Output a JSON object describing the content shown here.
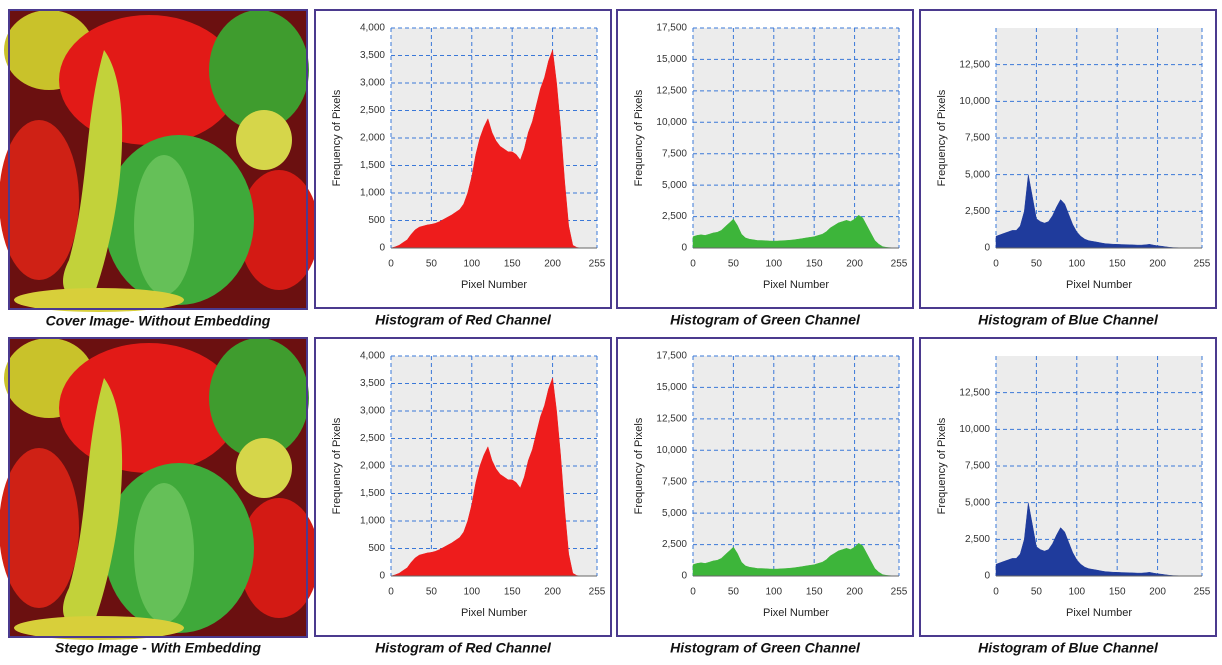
{
  "images": [
    {
      "caption": "Cover Image- Without Embedding"
    },
    {
      "caption": "Stego Image - With Embedding"
    }
  ],
  "chart_data": [
    {
      "type": "area",
      "title": "Histogram of Red Channel",
      "x_label": "Pixel Number",
      "y_label": "Frequency of Pixels",
      "color": "#ee1c1c",
      "grid": true,
      "xlim": [
        0,
        255
      ],
      "xticks": [
        0,
        50,
        100,
        150,
        200,
        255
      ],
      "ylim": [
        0,
        4000
      ],
      "yticks": [
        0,
        500,
        {
          "value": 1000,
          "label": "1,000"
        },
        {
          "value": 1500,
          "label": "1,500"
        },
        {
          "value": 2000,
          "label": "2,000"
        },
        {
          "value": 2500,
          "label": "2,500"
        },
        {
          "value": 3000,
          "label": "3,000"
        },
        {
          "value": 3500,
          "label": "3,500"
        },
        {
          "value": 4000,
          "label": "4,000"
        }
      ],
      "x": [
        0,
        5,
        10,
        15,
        20,
        25,
        30,
        35,
        40,
        45,
        50,
        55,
        60,
        65,
        70,
        75,
        80,
        85,
        90,
        95,
        100,
        105,
        110,
        115,
        120,
        125,
        130,
        135,
        140,
        145,
        150,
        155,
        160,
        165,
        170,
        175,
        180,
        185,
        190,
        195,
        200,
        205,
        210,
        215,
        220,
        225,
        230,
        235,
        240,
        245,
        250,
        255
      ],
      "values": [
        0,
        20,
        50,
        100,
        150,
        250,
        330,
        380,
        400,
        420,
        430,
        450,
        480,
        520,
        560,
        600,
        650,
        700,
        800,
        1000,
        1300,
        1700,
        2000,
        2200,
        2350,
        2100,
        1950,
        1850,
        1800,
        1750,
        1750,
        1700,
        1600,
        1800,
        2100,
        2300,
        2600,
        2900,
        3100,
        3400,
        3600,
        3000,
        2200,
        1200,
        400,
        50,
        10,
        0,
        0,
        0,
        0,
        0
      ]
    },
    {
      "type": "area",
      "title": "Histogram of Green Channel",
      "x_label": "Pixel Number",
      "y_label": "Frequency of Pixels",
      "color": "#3db53a",
      "grid": true,
      "xlim": [
        0,
        255
      ],
      "xticks": [
        0,
        50,
        100,
        150,
        200,
        255
      ],
      "ylim": [
        0,
        17500
      ],
      "yticks": [
        0,
        {
          "value": 2500,
          "label": "2,500"
        },
        {
          "value": 5000,
          "label": "5,000"
        },
        {
          "value": 7500,
          "label": "7,500"
        },
        {
          "value": 10000,
          "label": "10,000"
        },
        {
          "value": 12500,
          "label": "12,500"
        },
        {
          "value": 15000,
          "label": "15,000"
        },
        {
          "value": 17500,
          "label": "17,500"
        }
      ],
      "x": [
        0,
        5,
        10,
        15,
        20,
        25,
        30,
        35,
        40,
        45,
        50,
        55,
        60,
        65,
        70,
        75,
        80,
        85,
        90,
        95,
        100,
        105,
        110,
        115,
        120,
        125,
        130,
        135,
        140,
        145,
        150,
        155,
        160,
        165,
        170,
        175,
        180,
        185,
        190,
        195,
        200,
        205,
        210,
        215,
        220,
        225,
        230,
        235,
        240,
        245,
        250,
        255
      ],
      "values": [
        900,
        1000,
        1050,
        1000,
        1100,
        1200,
        1250,
        1400,
        1700,
        2000,
        2300,
        1800,
        1100,
        800,
        700,
        650,
        600,
        600,
        580,
        560,
        550,
        560,
        580,
        600,
        620,
        650,
        700,
        750,
        800,
        850,
        900,
        1000,
        1100,
        1300,
        1600,
        1800,
        2000,
        2100,
        2200,
        2100,
        2300,
        2600,
        2400,
        1800,
        1200,
        600,
        300,
        100,
        50,
        20,
        0,
        0
      ]
    },
    {
      "type": "area",
      "title": "Histogram of Blue Channel",
      "x_label": "Pixel Number",
      "y_label": "Frequency of Pixels",
      "color": "#1f3b9c",
      "grid": true,
      "xlim": [
        0,
        255
      ],
      "xticks": [
        0,
        50,
        100,
        150,
        200,
        255
      ],
      "ylim": [
        0,
        15000
      ],
      "yticks": [
        0,
        {
          "value": 2500,
          "label": "2,500"
        },
        {
          "value": 5000,
          "label": "5,000"
        },
        {
          "value": 7500,
          "label": "7,500"
        },
        {
          "value": 10000,
          "label": "10,000"
        },
        {
          "value": 12500,
          "label": "12,500"
        }
      ],
      "x": [
        0,
        5,
        10,
        15,
        20,
        25,
        30,
        35,
        40,
        45,
        50,
        55,
        60,
        65,
        70,
        75,
        80,
        85,
        90,
        95,
        100,
        105,
        110,
        115,
        120,
        125,
        130,
        135,
        140,
        145,
        150,
        155,
        160,
        165,
        170,
        175,
        180,
        185,
        190,
        195,
        200,
        205,
        210,
        215,
        220,
        225,
        230,
        235,
        240,
        245,
        250,
        255
      ],
      "values": [
        800,
        900,
        1000,
        1100,
        1200,
        1200,
        1500,
        2500,
        5000,
        3500,
        2000,
        1800,
        1700,
        1800,
        2200,
        2800,
        3300,
        3000,
        2300,
        1600,
        1100,
        800,
        600,
        500,
        450,
        400,
        350,
        300,
        280,
        260,
        250,
        240,
        230,
        220,
        210,
        200,
        200,
        220,
        250,
        200,
        150,
        120,
        80,
        50,
        30,
        20,
        10,
        0,
        0,
        0,
        0,
        0
      ]
    },
    {
      "type": "area",
      "title": "Histogram of Red Channel",
      "x_label": "Pixel Number",
      "y_label": "Frequency of Pixels",
      "color": "#ee1c1c",
      "grid": true,
      "xlim": [
        0,
        255
      ],
      "xticks": [
        0,
        50,
        100,
        150,
        200,
        255
      ],
      "ylim": [
        0,
        4000
      ],
      "yticks": [
        0,
        500,
        {
          "value": 1000,
          "label": "1,000"
        },
        {
          "value": 1500,
          "label": "1,500"
        },
        {
          "value": 2000,
          "label": "2,000"
        },
        {
          "value": 2500,
          "label": "2,500"
        },
        {
          "value": 3000,
          "label": "3,000"
        },
        {
          "value": 3500,
          "label": "3,500"
        },
        {
          "value": 4000,
          "label": "4,000"
        }
      ],
      "x": [
        0,
        5,
        10,
        15,
        20,
        25,
        30,
        35,
        40,
        45,
        50,
        55,
        60,
        65,
        70,
        75,
        80,
        85,
        90,
        95,
        100,
        105,
        110,
        115,
        120,
        125,
        130,
        135,
        140,
        145,
        150,
        155,
        160,
        165,
        170,
        175,
        180,
        185,
        190,
        195,
        200,
        205,
        210,
        215,
        220,
        225,
        230,
        235,
        240,
        245,
        250,
        255
      ],
      "values": [
        0,
        20,
        50,
        100,
        150,
        250,
        330,
        380,
        400,
        420,
        430,
        450,
        480,
        520,
        560,
        600,
        650,
        700,
        800,
        1000,
        1300,
        1700,
        2000,
        2200,
        2350,
        2100,
        1950,
        1850,
        1800,
        1750,
        1750,
        1700,
        1600,
        1800,
        2100,
        2300,
        2600,
        2900,
        3100,
        3400,
        3600,
        3000,
        2200,
        1200,
        400,
        50,
        10,
        0,
        0,
        0,
        0,
        0
      ]
    },
    {
      "type": "area",
      "title": "Histogram of Green Channel",
      "x_label": "Pixel Number",
      "y_label": "Frequency of Pixels",
      "color": "#3db53a",
      "grid": true,
      "xlim": [
        0,
        255
      ],
      "xticks": [
        0,
        50,
        100,
        150,
        200,
        255
      ],
      "ylim": [
        0,
        17500
      ],
      "yticks": [
        0,
        {
          "value": 2500,
          "label": "2,500"
        },
        {
          "value": 5000,
          "label": "5,000"
        },
        {
          "value": 7500,
          "label": "7,500"
        },
        {
          "value": 10000,
          "label": "10,000"
        },
        {
          "value": 12500,
          "label": "12,500"
        },
        {
          "value": 15000,
          "label": "15,000"
        },
        {
          "value": 17500,
          "label": "17,500"
        }
      ],
      "x": [
        0,
        5,
        10,
        15,
        20,
        25,
        30,
        35,
        40,
        45,
        50,
        55,
        60,
        65,
        70,
        75,
        80,
        85,
        90,
        95,
        100,
        105,
        110,
        115,
        120,
        125,
        130,
        135,
        140,
        145,
        150,
        155,
        160,
        165,
        170,
        175,
        180,
        185,
        190,
        195,
        200,
        205,
        210,
        215,
        220,
        225,
        230,
        235,
        240,
        245,
        250,
        255
      ],
      "values": [
        900,
        1000,
        1050,
        1000,
        1100,
        1200,
        1250,
        1400,
        1700,
        2000,
        2300,
        1800,
        1100,
        800,
        700,
        650,
        600,
        600,
        580,
        560,
        550,
        560,
        580,
        600,
        620,
        650,
        700,
        750,
        800,
        850,
        900,
        1000,
        1100,
        1300,
        1600,
        1800,
        2000,
        2100,
        2200,
        2100,
        2300,
        2600,
        2400,
        1800,
        1200,
        600,
        300,
        100,
        50,
        20,
        0,
        0
      ]
    },
    {
      "type": "area",
      "title": "Histogram of Blue Channel",
      "x_label": "Pixel Number",
      "y_label": "Frequency of Pixels",
      "color": "#1f3b9c",
      "grid": true,
      "xlim": [
        0,
        255
      ],
      "xticks": [
        0,
        50,
        100,
        150,
        200,
        255
      ],
      "ylim": [
        0,
        15000
      ],
      "yticks": [
        0,
        {
          "value": 2500,
          "label": "2,500"
        },
        {
          "value": 5000,
          "label": "5,000"
        },
        {
          "value": 7500,
          "label": "7,500"
        },
        {
          "value": 10000,
          "label": "10,000"
        },
        {
          "value": 12500,
          "label": "12,500"
        }
      ],
      "x": [
        0,
        5,
        10,
        15,
        20,
        25,
        30,
        35,
        40,
        45,
        50,
        55,
        60,
        65,
        70,
        75,
        80,
        85,
        90,
        95,
        100,
        105,
        110,
        115,
        120,
        125,
        130,
        135,
        140,
        145,
        150,
        155,
        160,
        165,
        170,
        175,
        180,
        185,
        190,
        195,
        200,
        205,
        210,
        215,
        220,
        225,
        230,
        235,
        240,
        245,
        250,
        255
      ],
      "values": [
        800,
        900,
        1000,
        1100,
        1200,
        1200,
        1500,
        2500,
        5000,
        3500,
        2000,
        1800,
        1700,
        1800,
        2200,
        2800,
        3300,
        3000,
        2300,
        1600,
        1100,
        800,
        600,
        500,
        450,
        400,
        350,
        300,
        280,
        260,
        250,
        240,
        230,
        220,
        210,
        200,
        200,
        220,
        250,
        200,
        150,
        120,
        80,
        50,
        30,
        20,
        10,
        0,
        0,
        0,
        0,
        0
      ]
    }
  ]
}
